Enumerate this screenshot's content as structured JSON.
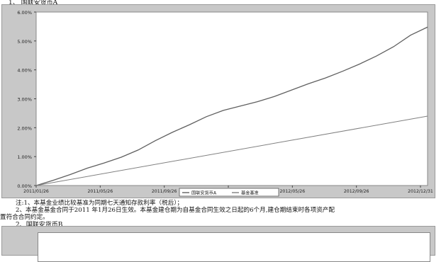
{
  "section1_heading": "1、 国联安货币A",
  "section2_heading": "2、国联安货币B",
  "notes": [
    "注:1、本基金业绩比较基准为同期七天通知存款利率（税后）；",
    "2、本基金基金合同于2011 年1月26日生效。本基金建仓期为自基金合同生效之日起的6个月,建仓期结束时各项资产配",
    "置符合合同约定。"
  ],
  "colors": {
    "fund_line": "#606060",
    "benchmark_line": "#808080",
    "frame_bg": "#c8c8c8",
    "plot_bg": "#ffffff"
  },
  "chart_data": {
    "type": "line",
    "title": "",
    "xlabel": "",
    "ylabel": "",
    "ylim": [
      0,
      6
    ],
    "y_ticks": [
      0,
      1,
      2,
      3,
      4,
      5,
      6
    ],
    "y_tick_labels": [
      "0.00%",
      "1.00%",
      "2.00%",
      "3.00%",
      "4.00%",
      "5.00%",
      "6.00%"
    ],
    "x_tick_labels": [
      "2011/01/26",
      "2011/05/26",
      "2011/09/26",
      "2012/01/26",
      "2012/05/26",
      "2012/09/26",
      "2012/12/31"
    ],
    "legend_position": "bottom-center",
    "grid": false,
    "series": [
      {
        "name": "国联安货币A",
        "color_key": "fund_line",
        "x": [
          0,
          1,
          2,
          3,
          4,
          5,
          6,
          7,
          8,
          9,
          10,
          11,
          12,
          13,
          14,
          15,
          16,
          17,
          18,
          19,
          20,
          21,
          22,
          23
        ],
        "values": [
          0,
          0.18,
          0.38,
          0.6,
          0.78,
          0.98,
          1.23,
          1.55,
          1.84,
          2.1,
          2.38,
          2.6,
          2.75,
          2.9,
          3.08,
          3.3,
          3.52,
          3.72,
          3.95,
          4.2,
          4.48,
          4.8,
          5.2,
          5.48
        ]
      },
      {
        "name": "基金基准",
        "color_key": "benchmark_line",
        "x": [
          0,
          23
        ],
        "values": [
          0,
          2.4
        ]
      }
    ]
  }
}
